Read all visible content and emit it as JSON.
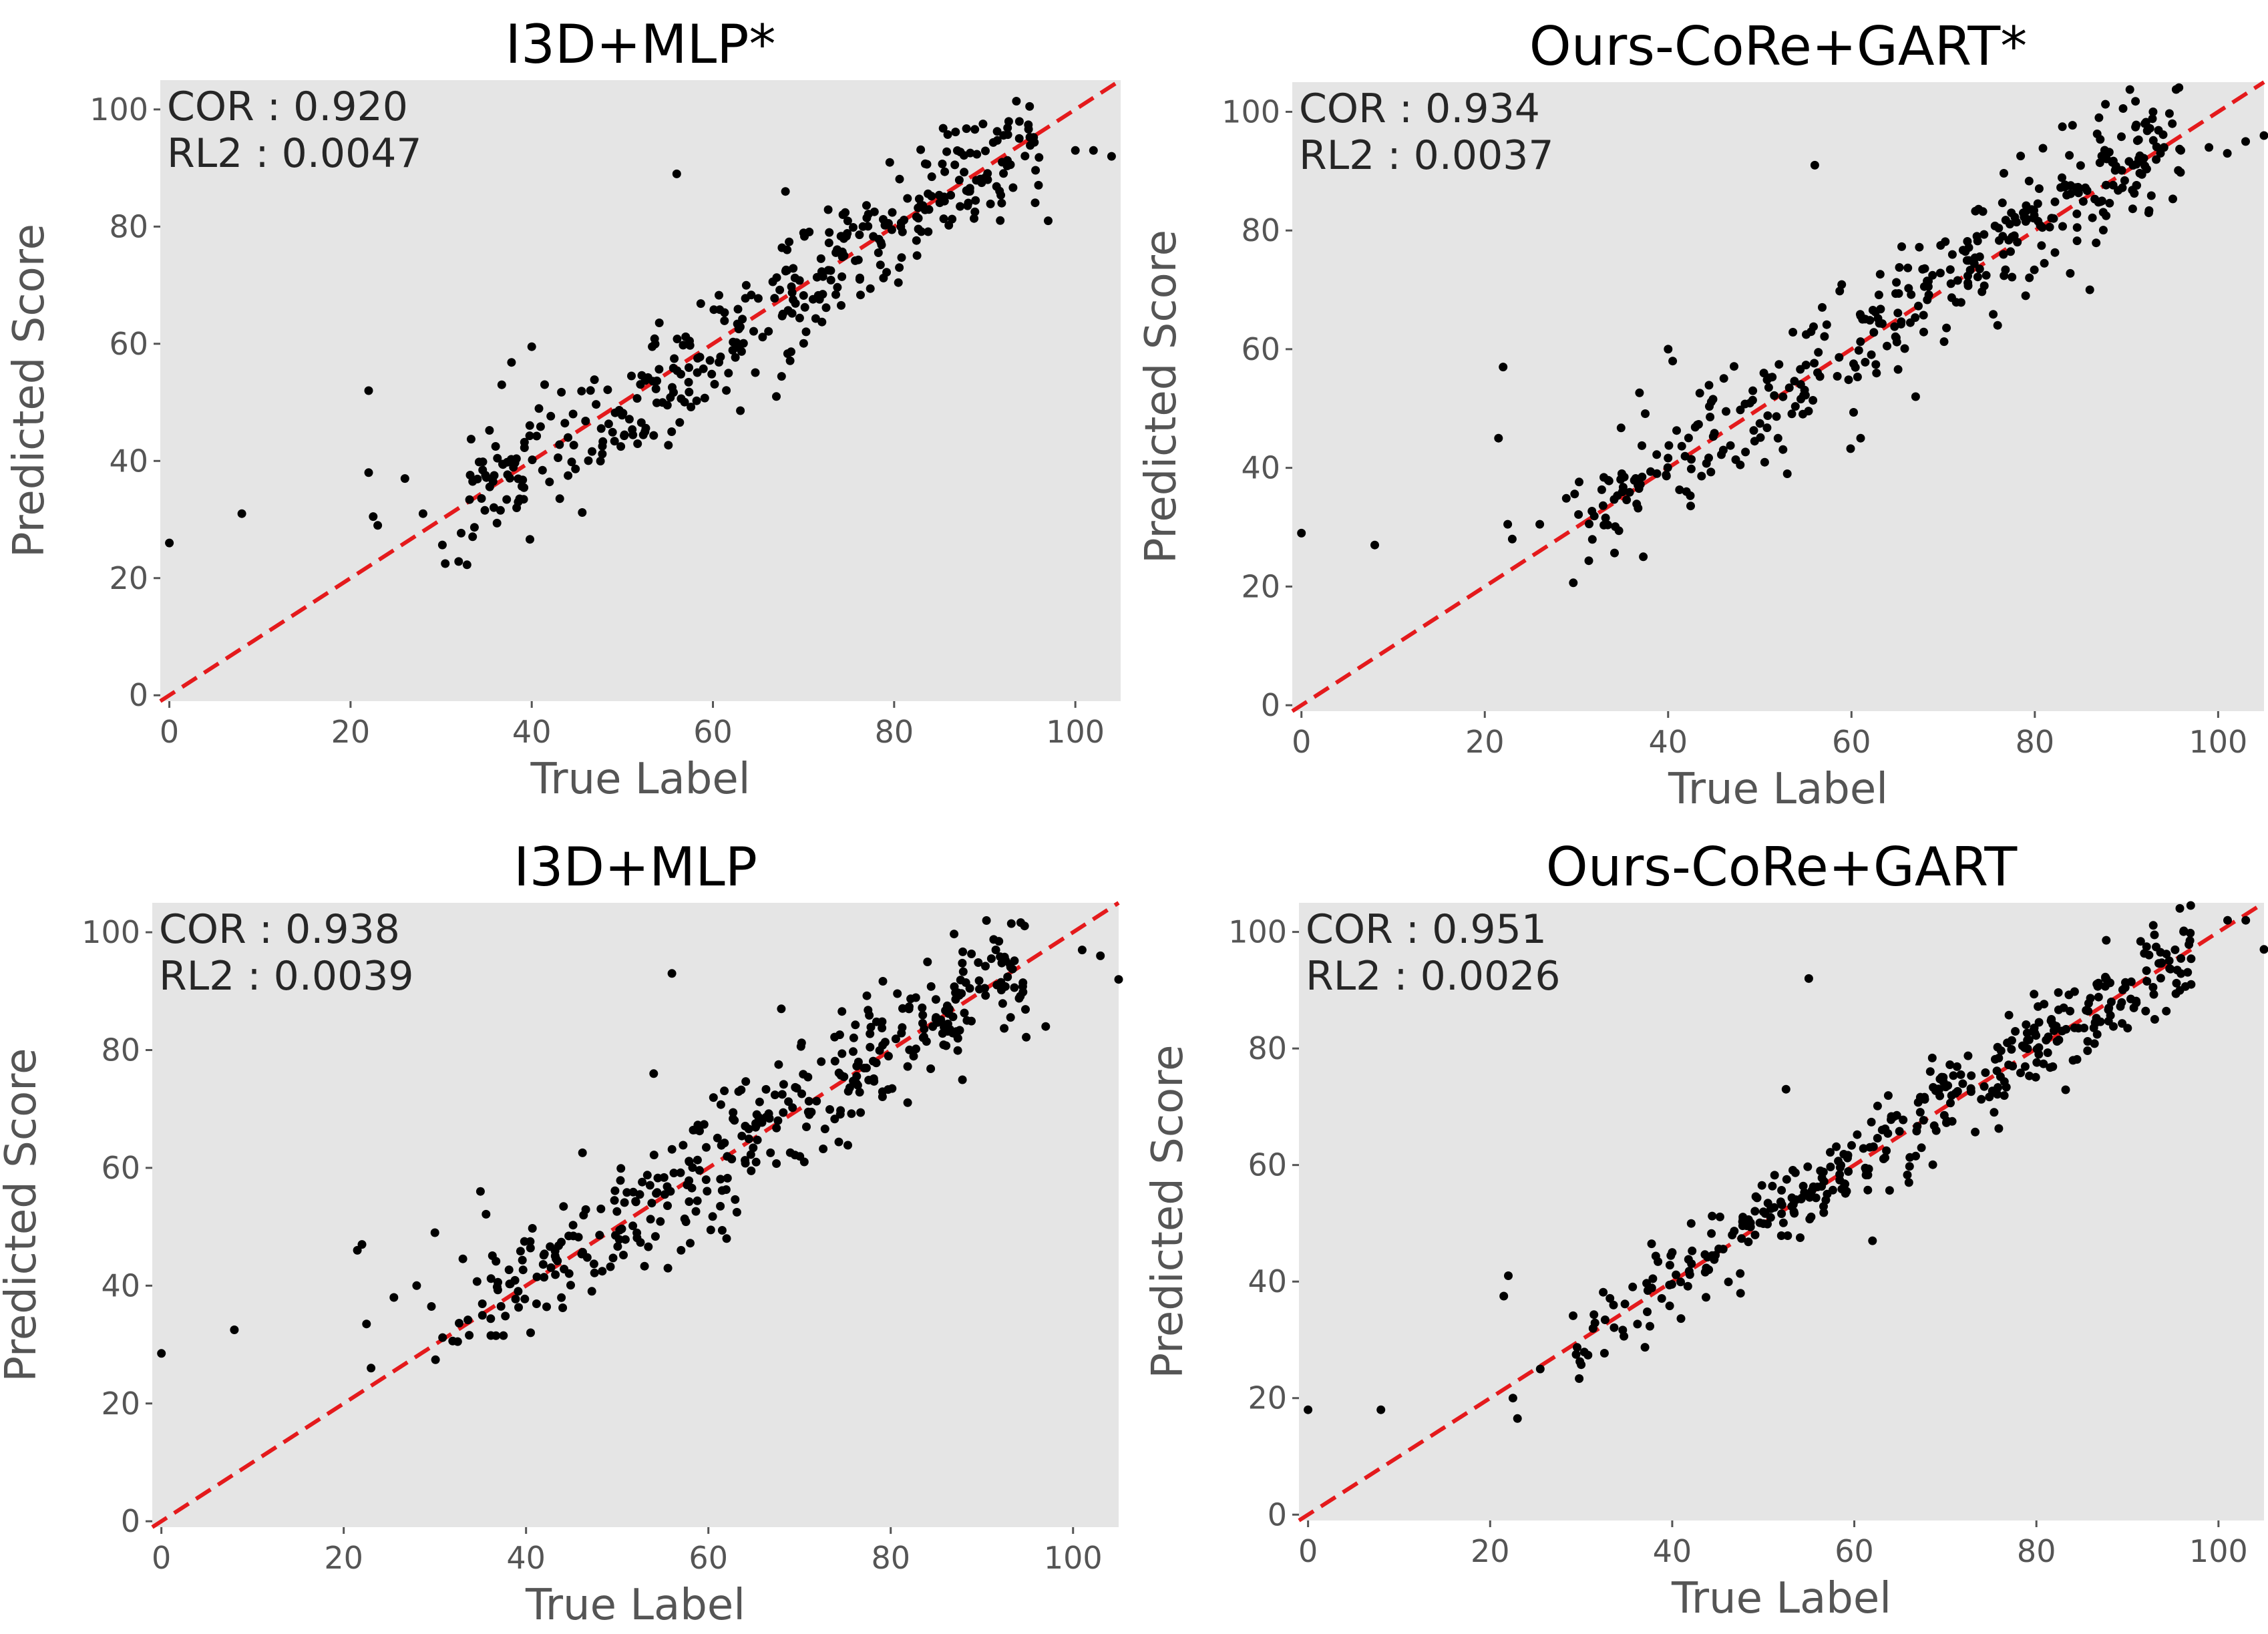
{
  "chart_data": [
    {
      "type": "scatter",
      "title": "I3D+MLP*",
      "xlabel": "True Label",
      "ylabel": "Predicted Score",
      "xlim": [
        -1,
        105
      ],
      "ylim": [
        -1,
        105
      ],
      "xticks": [
        0,
        20,
        40,
        60,
        80,
        100
      ],
      "yticks": [
        0,
        20,
        40,
        60,
        80,
        100
      ],
      "annotations": [
        "COR : 0.920",
        "RL2 : 0.0047"
      ],
      "reference_line": "y = x",
      "outliers": [
        [
          0,
          26
        ],
        [
          8,
          31
        ],
        [
          22,
          52
        ],
        [
          22,
          38
        ],
        [
          22.5,
          30.5
        ],
        [
          23,
          29
        ],
        [
          26,
          37
        ],
        [
          28,
          31
        ],
        [
          40,
          59.5
        ],
        [
          56,
          89
        ],
        [
          68,
          86
        ],
        [
          67,
          51
        ],
        [
          100,
          93
        ],
        [
          102,
          93
        ],
        [
          104,
          92
        ],
        [
          97,
          81
        ],
        [
          52.5,
          45
        ],
        [
          44,
          44
        ],
        [
          38.5,
          33
        ]
      ],
      "n_cluster_points": 380,
      "cluster": {
        "x_range": [
          30,
          96
        ],
        "slope": 1.0,
        "intercept": -0.5,
        "spread": 5.5,
        "seed": 11
      }
    },
    {
      "type": "scatter",
      "title": "Ours-CoRe+GART*",
      "xlabel": "True Label",
      "ylabel": "Predicted Score",
      "xlim": [
        -1,
        105
      ],
      "ylim": [
        -1,
        105
      ],
      "xticks": [
        0,
        20,
        40,
        60,
        80,
        100
      ],
      "yticks": [
        0,
        20,
        40,
        60,
        80,
        100
      ],
      "annotations": [
        "COR : 0.934",
        "RL2 : 0.0037"
      ],
      "reference_line": "y = x",
      "outliers": [
        [
          0,
          29
        ],
        [
          8,
          27
        ],
        [
          22,
          57
        ],
        [
          21.5,
          45
        ],
        [
          22.5,
          30.5
        ],
        [
          23,
          28
        ],
        [
          26,
          30.5
        ],
        [
          40,
          60
        ],
        [
          40.5,
          58
        ],
        [
          42,
          36
        ],
        [
          53,
          39
        ],
        [
          56,
          91
        ],
        [
          61,
          45
        ],
        [
          67,
          52
        ],
        [
          87,
          99
        ],
        [
          92,
          98
        ],
        [
          95,
          98
        ],
        [
          103,
          95
        ],
        [
          105,
          96
        ],
        [
          99,
          94
        ],
        [
          101,
          93
        ],
        [
          86,
          70
        ],
        [
          79,
          69
        ]
      ],
      "n_cluster_points": 380,
      "cluster": {
        "x_range": [
          28,
          96
        ],
        "slope": 1.0,
        "intercept": 1.5,
        "spread": 5.0,
        "seed": 23
      }
    },
    {
      "type": "scatter",
      "title": "I3D+MLP",
      "xlabel": "True Label",
      "ylabel": "Predicted Score",
      "xlim": [
        -1,
        105
      ],
      "ylim": [
        -1,
        105
      ],
      "xticks": [
        0,
        20,
        40,
        60,
        80,
        100
      ],
      "yticks": [
        0,
        20,
        40,
        60,
        80,
        100
      ],
      "annotations": [
        "COR : 0.938",
        "RL2 : 0.0039"
      ],
      "reference_line": "y = x",
      "outliers": [
        [
          0,
          28.5
        ],
        [
          8,
          32.5
        ],
        [
          21.5,
          46
        ],
        [
          22,
          47
        ],
        [
          22.5,
          33.5
        ],
        [
          23,
          26
        ],
        [
          25.5,
          38
        ],
        [
          28,
          40
        ],
        [
          30,
          49
        ],
        [
          32.5,
          30.5
        ],
        [
          35,
          56
        ],
        [
          40.5,
          32
        ],
        [
          56,
          93
        ],
        [
          54,
          76
        ],
        [
          68,
          87
        ],
        [
          90.5,
          102
        ],
        [
          101,
          97
        ],
        [
          103,
          96
        ],
        [
          105,
          92
        ],
        [
          97,
          84
        ],
        [
          62,
          48
        ],
        [
          57,
          46
        ]
      ],
      "n_cluster_points": 380,
      "cluster": {
        "x_range": [
          29,
          95
        ],
        "slope": 0.98,
        "intercept": 1.5,
        "spread": 5.2,
        "seed": 37
      }
    },
    {
      "type": "scatter",
      "title": "Ours-CoRe+GART",
      "xlabel": "True Label",
      "ylabel": "Predicted Score",
      "xlim": [
        -1,
        105
      ],
      "ylim": [
        -1,
        105
      ],
      "xticks": [
        0,
        20,
        40,
        60,
        80,
        100
      ],
      "yticks": [
        0,
        20,
        40,
        60,
        80,
        100
      ],
      "annotations": [
        "COR : 0.951",
        "RL2 : 0.0026"
      ],
      "reference_line": "y = x",
      "outliers": [
        [
          0,
          18
        ],
        [
          8,
          18
        ],
        [
          21.5,
          37.5
        ],
        [
          22,
          41
        ],
        [
          22.5,
          20
        ],
        [
          23,
          16.5
        ],
        [
          25.5,
          25
        ],
        [
          40,
          45
        ],
        [
          47.5,
          38
        ],
        [
          52.5,
          73
        ],
        [
          55,
          92
        ],
        [
          62,
          47
        ],
        [
          66,
          57
        ],
        [
          101,
          102
        ],
        [
          103,
          102
        ],
        [
          105,
          97
        ],
        [
          97,
          91
        ],
        [
          93,
          85
        ]
      ],
      "n_cluster_points": 380,
      "cluster": {
        "x_range": [
          28,
          97
        ],
        "slope": 1.0,
        "intercept": 0.5,
        "spread": 3.8,
        "seed": 53
      }
    }
  ]
}
